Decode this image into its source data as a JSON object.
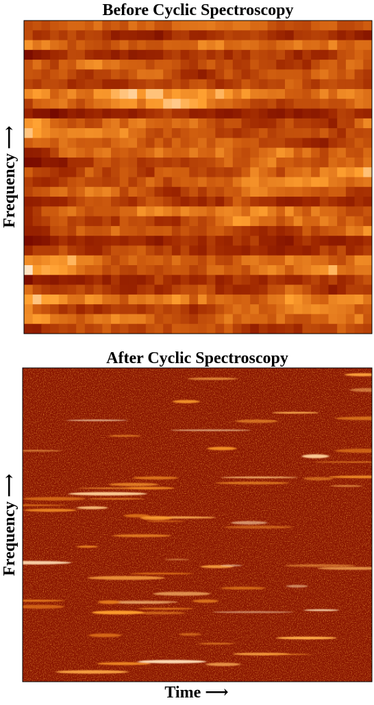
{
  "panels": [
    {
      "title": "Before Cyclic Spectroscopy",
      "y_label": "Frequency ⟶"
    },
    {
      "title": "After Cyclic Spectroscopy",
      "y_label": "Frequency ⟶"
    }
  ],
  "x_label": "Time ⟶"
}
